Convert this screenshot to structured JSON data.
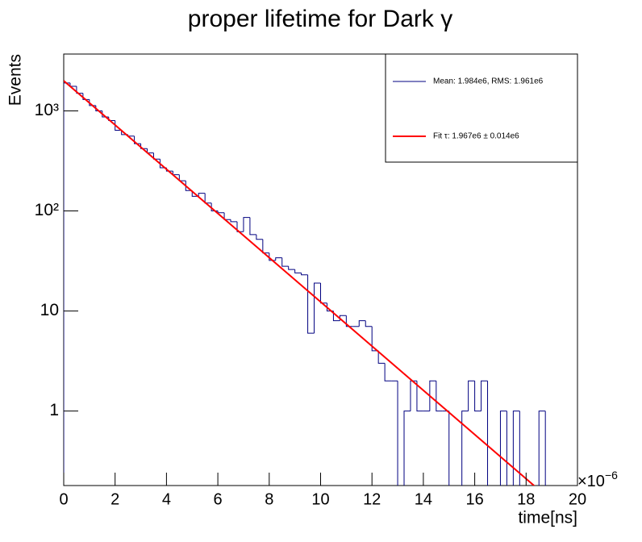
{
  "chart_data": {
    "type": "histogram",
    "title": "proper lifetime for Dark γ",
    "x_label": "time[ns]",
    "y_label": "Events",
    "x_multiplier": "×10",
    "x_multiplier_exponent": "−6",
    "log_y": true,
    "xlim": [
      0,
      20
    ],
    "ylim": [
      0.18,
      3700
    ],
    "xticks": [
      0,
      2,
      4,
      6,
      8,
      10,
      12,
      14,
      16,
      18,
      20
    ],
    "yticks": [
      1,
      10,
      {
        "value": 100,
        "label": "10²"
      },
      {
        "value": 1000,
        "label": "10³"
      }
    ],
    "bins": [
      0,
      0.25,
      0.5,
      0.75,
      1,
      1.25,
      1.5,
      1.75,
      2,
      2.25,
      2.5,
      2.75,
      3,
      3.25,
      3.5,
      3.75,
      4,
      4.25,
      4.5,
      4.75,
      5,
      5.25,
      5.5,
      5.75,
      6,
      6.25,
      6.5,
      6.75,
      7,
      7.25,
      7.5,
      7.75,
      8,
      8.25,
      8.5,
      8.75,
      9,
      9.25,
      9.5,
      9.75,
      10,
      10.25,
      10.5,
      10.75,
      11,
      11.25,
      11.5,
      11.75,
      12,
      12.25,
      12.5,
      12.75,
      13,
      13.25,
      13.5,
      13.75,
      14,
      14.25,
      14.5,
      14.75,
      15,
      15.25,
      15.5,
      15.75,
      16,
      16.25,
      16.5,
      16.75,
      17,
      17.25,
      17.5,
      17.75,
      18,
      18.25,
      18.5,
      18.75,
      19,
      19.25,
      19.5,
      19.75,
      20
    ],
    "series": [
      {
        "name": "Mean: 1.984e6, RMS: 1.961e6",
        "color": "#000080",
        "values": [
          1900,
          1760,
          1500,
          1300,
          1130,
          1000,
          870,
          800,
          640,
          580,
          560,
          470,
          420,
          380,
          330,
          270,
          250,
          230,
          200,
          160,
          140,
          150,
          120,
          100,
          96,
          82,
          78,
          62,
          86,
          58,
          52,
          38,
          32,
          34,
          28,
          26,
          24,
          23,
          6,
          19,
          12,
          10,
          8,
          9,
          7,
          7,
          8,
          7,
          4,
          3,
          2,
          2,
          0,
          1,
          2,
          1,
          1,
          2,
          1,
          1,
          0,
          0,
          1,
          2,
          1,
          2,
          0,
          0,
          1,
          0,
          1,
          0,
          0,
          0,
          1,
          0,
          0,
          0,
          0,
          0
        ]
      },
      {
        "name": "Fit τ: 1.967e6 ± 0.014e6",
        "color": "#ff0000",
        "x": [
          0,
          18.6
        ],
        "values": [
          2000,
          0.155
        ]
      }
    ]
  }
}
